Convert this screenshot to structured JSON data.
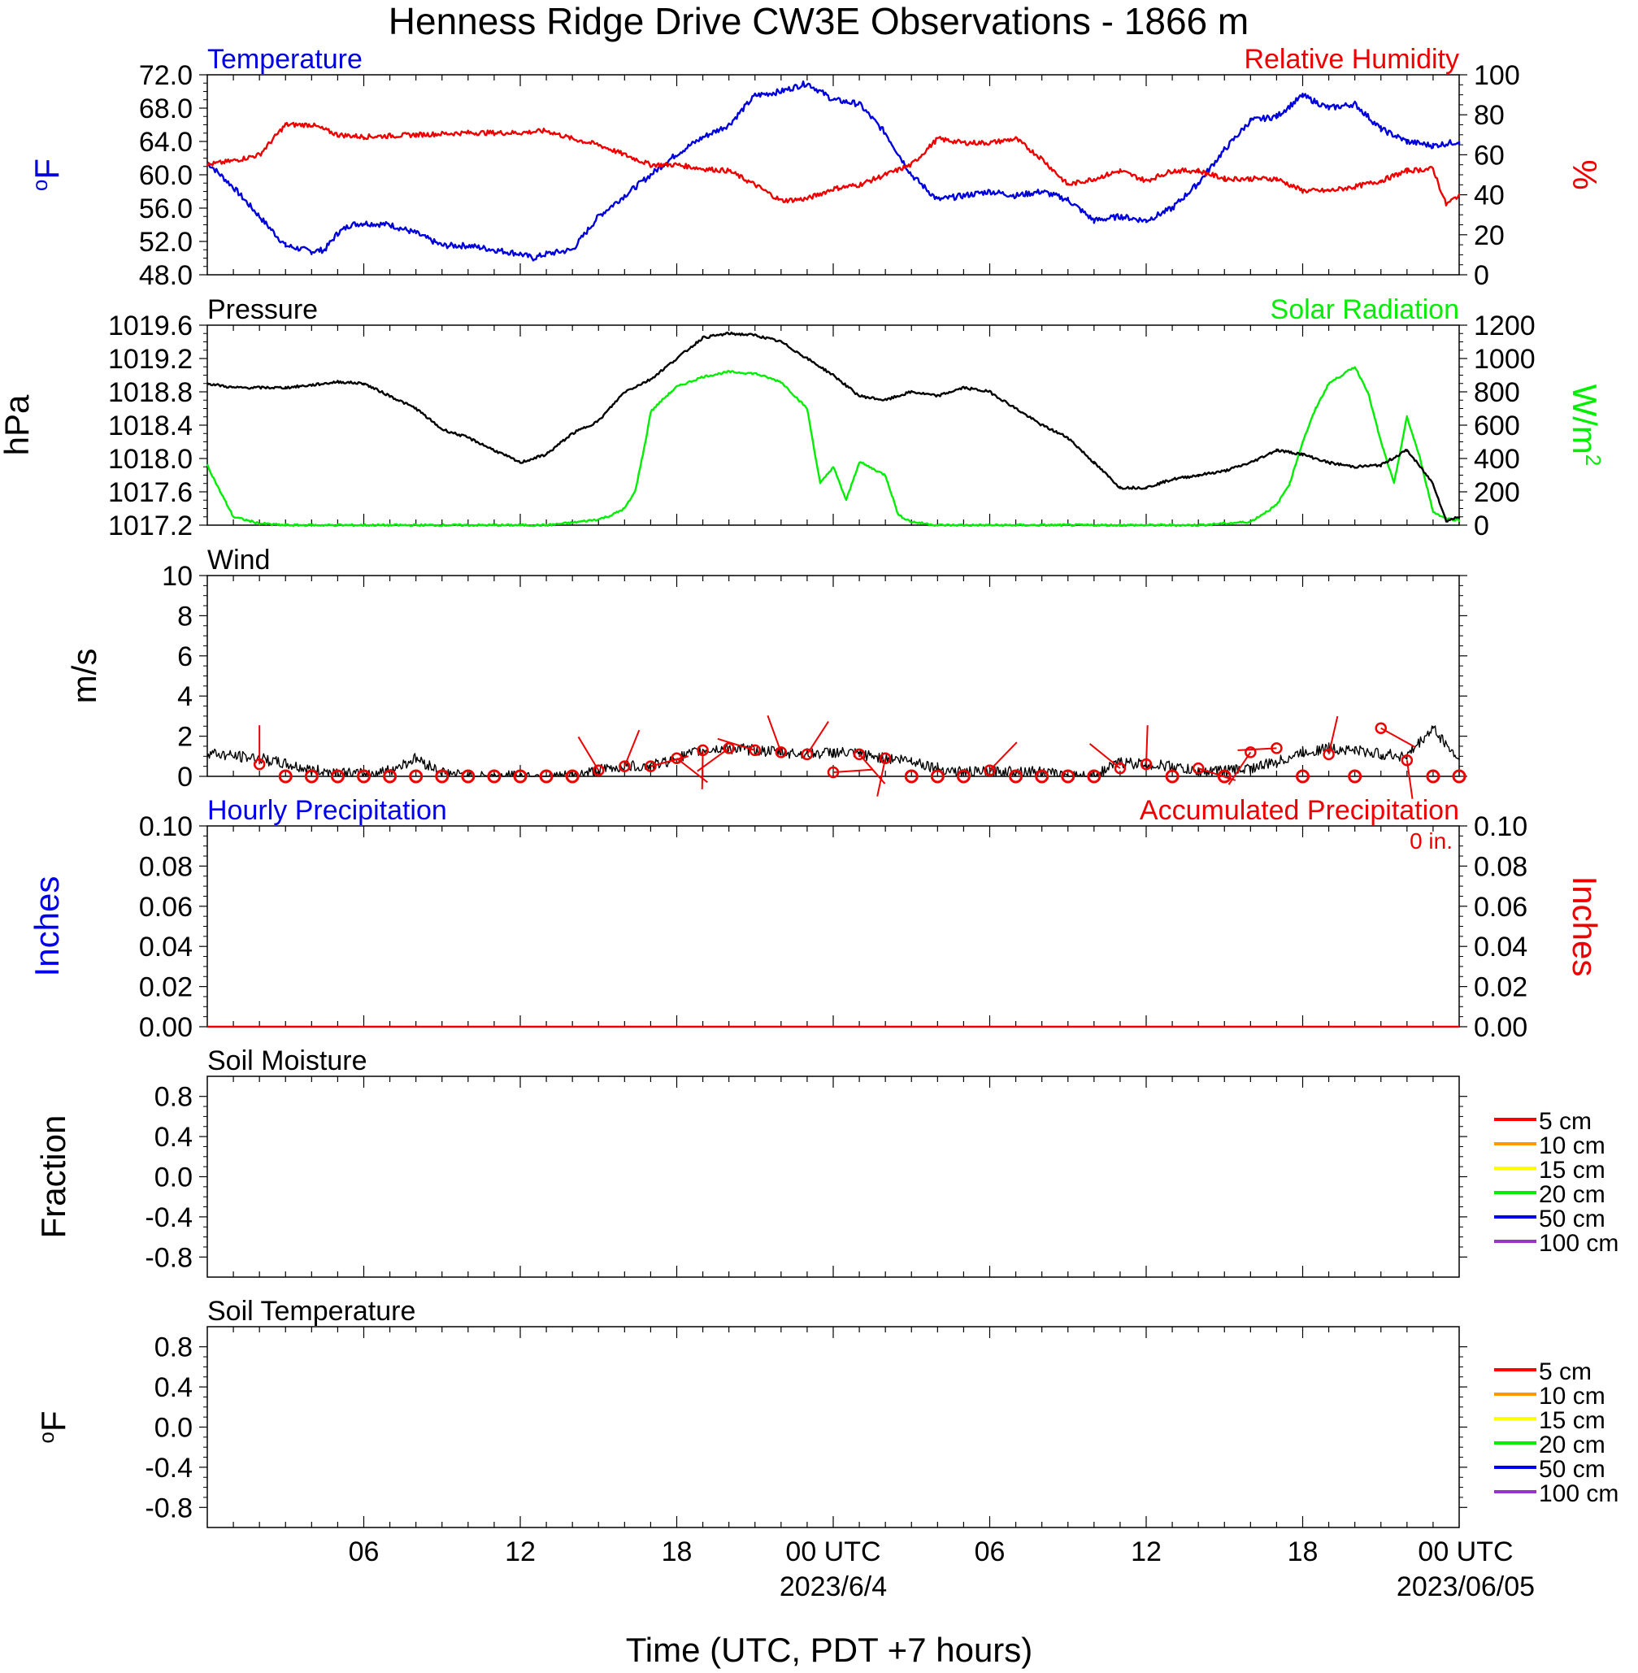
{
  "title": "Henness Ridge Drive CW3E Observations - 1866 m",
  "xaxis": {
    "title": "Time (UTC, PDT +7 hours)",
    "range_hours": [
      0,
      48
    ],
    "tick_hours": [
      6,
      12,
      18,
      24,
      30,
      36,
      42,
      48
    ],
    "tick_labels": [
      "06",
      "12",
      "18",
      "00 UTC",
      "06",
      "12",
      "18",
      "00 UTC"
    ],
    "date_labels": [
      {
        "hour": 24,
        "text": "2023/6/4"
      },
      {
        "hour": 48,
        "text": "2023/06/05"
      }
    ]
  },
  "colors": {
    "temperature": "#0000dd",
    "humidity": "#ee0000",
    "pressure": "#000000",
    "solar": "#00ee00",
    "wind": "#000000",
    "barb": "#ee0000",
    "hourly_precip": "#0000ee",
    "accum_precip": "#ee0000"
  },
  "panels": {
    "temp_rh": {
      "left_title": "Temperature",
      "right_title": "Relative Humidity",
      "left_ylabel": "oF",
      "right_ylabel": "%",
      "left_ticks": [
        "48.0",
        "52.0",
        "56.0",
        "60.0",
        "64.0",
        "68.0",
        "72.0"
      ],
      "right_ticks": [
        "0",
        "20",
        "40",
        "60",
        "80",
        "100"
      ]
    },
    "pressure_solar": {
      "left_title": "Pressure",
      "right_title": "Solar Radiation",
      "left_ylabel": "hPa",
      "right_ylabel": "W/m",
      "right_ylabel_sup": "2",
      "left_ticks": [
        "1017.2",
        "1017.6",
        "1018.0",
        "1018.4",
        "1018.8",
        "1019.2",
        "1019.6"
      ],
      "right_ticks": [
        "0",
        "200",
        "400",
        "600",
        "800",
        "1000",
        "1200"
      ]
    },
    "wind": {
      "left_title": "Wind",
      "left_ylabel": "m/s",
      "left_ticks": [
        "0",
        "2",
        "4",
        "6",
        "8",
        "10"
      ]
    },
    "precip": {
      "left_title": "Hourly Precipitation",
      "right_title": "Accumulated Precipitation",
      "left_ylabel": "Inches",
      "right_ylabel": "Inches",
      "accum_label": "0 in.",
      "left_ticks": [
        "0.00",
        "0.02",
        "0.04",
        "0.06",
        "0.08",
        "0.10"
      ],
      "right_ticks": [
        "0.00",
        "0.02",
        "0.04",
        "0.06",
        "0.08",
        "0.10"
      ]
    },
    "soil_moisture": {
      "left_title": "Soil Moisture",
      "left_ylabel": "Fraction",
      "left_ticks": [
        "-0.8",
        "-0.4",
        "0.0",
        "0.4",
        "0.8"
      ]
    },
    "soil_temp": {
      "left_title": "Soil Temperature",
      "left_ylabel": "oF",
      "left_ticks": [
        "-0.8",
        "-0.4",
        "0.0",
        "0.4",
        "0.8"
      ]
    }
  },
  "legend": {
    "entries": [
      "5 cm",
      "10 cm",
      "15 cm",
      "20 cm",
      "50 cm",
      "100 cm"
    ],
    "colors": [
      "#ff0000",
      "#ff9900",
      "#ffff00",
      "#00ee00",
      "#0000ee",
      "#9933cc"
    ]
  },
  "chart_data": [
    {
      "type": "line",
      "title": "Temperature / Relative Humidity",
      "x_unit": "hours since 2023-06-03 00 UTC",
      "series": [
        {
          "name": "Temperature",
          "axis": "left",
          "unit": "oF",
          "ylim": [
            48,
            72
          ],
          "x": [
            0,
            1,
            2,
            3,
            4,
            4.5,
            5,
            5.5,
            6,
            7,
            8,
            9,
            10,
            11,
            12,
            12.5,
            13,
            14,
            14.5,
            15,
            16,
            17,
            18,
            19,
            20,
            21,
            22,
            23,
            24,
            25,
            26,
            27,
            28,
            29,
            30,
            31,
            32,
            33,
            34,
            35,
            36,
            37,
            38,
            39,
            40,
            41,
            42,
            43,
            44,
            45,
            46,
            47,
            48
          ],
          "y": [
            61.5,
            58.5,
            55,
            51.5,
            50.8,
            51,
            53,
            54,
            54.2,
            54,
            53,
            51.5,
            51.5,
            51,
            50.5,
            50,
            50.5,
            51,
            53,
            55,
            57.5,
            60,
            62.5,
            64.5,
            66,
            69.5,
            70,
            71,
            69,
            68.5,
            65,
            60,
            57,
            57.5,
            58,
            57.5,
            58,
            57,
            54.5,
            55,
            54.5,
            56,
            59,
            63,
            66.5,
            67,
            69.5,
            68,
            68.5,
            65.5,
            64,
            63.5,
            64
          ]
        },
        {
          "name": "Relative Humidity",
          "axis": "right",
          "unit": "%",
          "ylim": [
            0,
            100
          ],
          "x": [
            0,
            1,
            2,
            3,
            4,
            5,
            6,
            8,
            10,
            12,
            13,
            14,
            15,
            16,
            17,
            18,
            19,
            20,
            21,
            22,
            23,
            24,
            25,
            26,
            27,
            28,
            29,
            30,
            31,
            32,
            33,
            34,
            35,
            36,
            37,
            38,
            39,
            40,
            41,
            42,
            43,
            44,
            45,
            46,
            47,
            47.5,
            48
          ],
          "y": [
            55,
            57,
            60,
            75,
            75,
            70,
            69,
            70,
            71,
            71,
            72,
            68,
            65,
            60,
            55,
            55,
            53,
            52,
            45,
            37,
            38,
            43,
            45,
            50,
            55,
            68,
            66,
            66,
            68,
            58,
            45,
            48,
            52,
            47,
            52,
            52,
            48,
            48,
            48,
            42,
            42,
            44,
            47,
            52,
            53,
            35,
            40
          ]
        }
      ]
    },
    {
      "type": "line",
      "title": "Pressure / Solar Radiation",
      "x_unit": "hours since 2023-06-03 00 UTC",
      "series": [
        {
          "name": "Pressure",
          "axis": "left",
          "unit": "hPa",
          "ylim": [
            1017.2,
            1019.6
          ],
          "x": [
            0,
            1,
            2,
            3,
            4,
            5,
            6,
            7,
            8,
            9,
            10,
            11,
            12,
            13,
            14,
            15,
            16,
            17,
            18,
            19,
            20,
            21,
            22,
            23,
            24,
            25,
            26,
            27,
            28,
            29,
            30,
            31,
            32,
            33,
            34,
            35,
            36,
            37,
            38,
            39,
            40,
            41,
            42,
            43,
            44,
            45,
            46,
            47,
            47.5,
            48
          ],
          "y": [
            1018.9,
            1018.85,
            1018.85,
            1018.85,
            1018.88,
            1018.92,
            1018.9,
            1018.75,
            1018.6,
            1018.35,
            1018.25,
            1018.1,
            1017.95,
            1018.05,
            1018.3,
            1018.45,
            1018.8,
            1018.95,
            1019.2,
            1019.45,
            1019.5,
            1019.48,
            1019.4,
            1019.2,
            1019.0,
            1018.75,
            1018.7,
            1018.8,
            1018.75,
            1018.85,
            1018.8,
            1018.6,
            1018.4,
            1018.25,
            1017.95,
            1017.65,
            1017.65,
            1017.75,
            1017.8,
            1017.85,
            1017.95,
            1018.1,
            1018.05,
            1017.95,
            1017.9,
            1017.92,
            1018.1,
            1017.7,
            1017.25,
            1017.3
          ]
        },
        {
          "name": "Solar Radiation",
          "axis": "right",
          "unit": "W/m2",
          "ylim": [
            0,
            1200
          ],
          "x": [
            0,
            0.5,
            1,
            2,
            3,
            4,
            5,
            10,
            12,
            13,
            14,
            15,
            15.5,
            16,
            16.4,
            16.8,
            17,
            17.5,
            18,
            19,
            20,
            21,
            22,
            22.5,
            23,
            23.5,
            24,
            24.5,
            25,
            26,
            26.5,
            27,
            28,
            29,
            30,
            35,
            38,
            40,
            41,
            41.5,
            42,
            42.5,
            43,
            43.5,
            44,
            44.5,
            45,
            45.5,
            46,
            46.5,
            47,
            47.5,
            48
          ],
          "y": [
            360,
            200,
            50,
            10,
            0,
            0,
            0,
            0,
            0,
            0,
            15,
            35,
            60,
            100,
            200,
            500,
            680,
            760,
            830,
            890,
            920,
            910,
            860,
            780,
            700,
            250,
            350,
            150,
            380,
            300,
            60,
            20,
            0,
            0,
            0,
            0,
            0,
            20,
            120,
            250,
            500,
            700,
            850,
            900,
            950,
            800,
            500,
            250,
            650,
            400,
            80,
            40,
            30
          ]
        },
        {
          "name": "Pressure minimum",
          "axis": "left",
          "unit": "hPa",
          "ylim": [
            1017.2,
            1019.6
          ],
          "x": [
            47.1
          ],
          "y": [
            1017.2
          ]
        }
      ]
    },
    {
      "type": "line",
      "title": "Wind",
      "x_unit": "hours since 2023-06-03 00 UTC",
      "series": [
        {
          "name": "Wind",
          "unit": "m/s",
          "ylim": [
            0,
            10
          ],
          "x": [
            0,
            1,
            2,
            3,
            4,
            5,
            6,
            7,
            8,
            9,
            10,
            11,
            12,
            13,
            14,
            15,
            16,
            17,
            18,
            19,
            20,
            21,
            22,
            23,
            24,
            25,
            26,
            27,
            28,
            29,
            30,
            31,
            32,
            33,
            34,
            35,
            36,
            37,
            38,
            39,
            40,
            41,
            42,
            43,
            44,
            45,
            46,
            47,
            48
          ],
          "y": [
            1.2,
            1.0,
            0.9,
            0.6,
            0.3,
            0.2,
            0.1,
            0.3,
            0.9,
            0.2,
            0,
            0,
            0,
            0,
            0,
            0.3,
            0.5,
            0.5,
            0.9,
            1.3,
            1.4,
            1.3,
            1.2,
            1.1,
            1.2,
            1.1,
            0.9,
            0.8,
            0.4,
            0.2,
            0.2,
            0.3,
            0.2,
            0,
            0,
            0.7,
            0.6,
            0.5,
            0.2,
            0.3,
            0.4,
            0.7,
            1.2,
            1.4,
            1.3,
            1.1,
            1.0,
            2.4,
            0.8
          ]
        },
        {
          "name": "Wind barbs",
          "unit": "m/s",
          "x": [
            2,
            3,
            4,
            5,
            6,
            7,
            8,
            9,
            10,
            11,
            12,
            13,
            14,
            15,
            16,
            17,
            18,
            19,
            20,
            21,
            22,
            23,
            24,
            25,
            26,
            27,
            28,
            29,
            30,
            31,
            32,
            33,
            34,
            35,
            36,
            37,
            38,
            39,
            40,
            41,
            42,
            43,
            44,
            45,
            46,
            47,
            48
          ],
          "y": [
            0.6,
            0,
            0,
            0,
            0,
            0,
            0,
            0,
            0,
            0,
            0,
            0,
            0,
            0.3,
            0.5,
            0.5,
            0.9,
            1.3,
            1.4,
            1.3,
            1.2,
            1.1,
            0.2,
            1.1,
            0.9,
            0,
            0,
            0,
            0.3,
            0,
            0,
            0,
            0,
            0.4,
            0.6,
            0,
            0.4,
            0,
            1.2,
            1.4,
            0,
            1.1,
            0,
            2.4,
            0.8,
            0,
            0
          ]
        }
      ]
    },
    {
      "type": "line",
      "title": "Hourly Precipitation / Accumulated Precipitation",
      "x_unit": "hours since 2023-06-03 00 UTC",
      "series": [
        {
          "name": "Hourly Precipitation",
          "axis": "left",
          "unit": "in",
          "ylim": [
            0,
            0.1
          ],
          "x": [
            0,
            48
          ],
          "y": [
            0,
            0
          ]
        },
        {
          "name": "Accumulated Precipitation",
          "axis": "right",
          "unit": "in",
          "ylim": [
            0,
            0.1
          ],
          "x": [
            0,
            48
          ],
          "y": [
            0,
            0
          ]
        }
      ]
    },
    {
      "type": "line",
      "title": "Soil Moisture",
      "ylim": [
        -1,
        1
      ],
      "series": [
        {
          "name": "5 cm",
          "x": [],
          "y": []
        },
        {
          "name": "10 cm",
          "x": [],
          "y": []
        },
        {
          "name": "15 cm",
          "x": [],
          "y": []
        },
        {
          "name": "20 cm",
          "x": [],
          "y": []
        },
        {
          "name": "50 cm",
          "x": [],
          "y": []
        },
        {
          "name": "100 cm",
          "x": [],
          "y": []
        }
      ]
    },
    {
      "type": "line",
      "title": "Soil Temperature",
      "ylim": [
        -1,
        1
      ],
      "series": [
        {
          "name": "5 cm",
          "x": [],
          "y": []
        },
        {
          "name": "10 cm",
          "x": [],
          "y": []
        },
        {
          "name": "15 cm",
          "x": [],
          "y": []
        },
        {
          "name": "20 cm",
          "x": [],
          "y": []
        },
        {
          "name": "50 cm",
          "x": [],
          "y": []
        },
        {
          "name": "100 cm",
          "x": [],
          "y": []
        }
      ]
    }
  ]
}
